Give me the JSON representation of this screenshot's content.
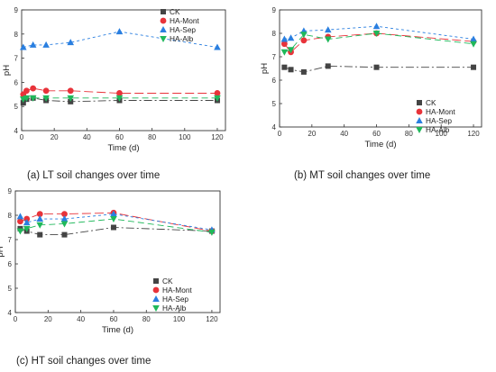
{
  "chart_data": [
    {
      "type": "line",
      "caption": "(a) LT soil changes over time",
      "xlabel": "Time (d)",
      "ylabel": "pH",
      "xlim": [
        0,
        125
      ],
      "ylim": [
        4,
        9
      ],
      "xticks": [
        "0",
        "20",
        "40",
        "60",
        "80",
        "100",
        "120"
      ],
      "yticks": [
        "4",
        "5",
        "6",
        "7",
        "8",
        "9"
      ],
      "legend_position": "top-right",
      "series": [
        {
          "name": "CK",
          "marker": "square",
          "color": "#444444",
          "dash": "9,3,2,3",
          "x": [
            1,
            3,
            7,
            15,
            30,
            60,
            120
          ],
          "y": [
            5.15,
            5.3,
            5.35,
            5.25,
            5.2,
            5.25,
            5.25
          ]
        },
        {
          "name": "HA-Mont",
          "marker": "circle",
          "color": "#e8333a",
          "dash": "10,4",
          "x": [
            1,
            3,
            7,
            15,
            30,
            60,
            120
          ],
          "y": [
            5.5,
            5.65,
            5.75,
            5.65,
            5.65,
            5.55,
            5.55
          ]
        },
        {
          "name": "HA-Sep",
          "marker": "triangle-up",
          "color": "#2a7fe0",
          "dash": "3,3",
          "x": [
            1,
            7,
            15,
            30,
            60,
            120
          ],
          "y": [
            7.45,
            7.55,
            7.55,
            7.65,
            8.1,
            7.45
          ]
        },
        {
          "name": "HA-Alb",
          "marker": "triangle-down",
          "color": "#1fb85a",
          "dash": "7,4",
          "x": [
            1,
            3,
            7,
            15,
            30,
            60,
            120
          ],
          "y": [
            5.3,
            5.35,
            5.35,
            5.35,
            5.35,
            5.35,
            5.35
          ]
        }
      ]
    },
    {
      "type": "line",
      "caption": "(b) MT soil changes over time",
      "xlabel": "Time (d)",
      "ylabel": "pH",
      "xlim": [
        0,
        125
      ],
      "ylim": [
        4,
        9
      ],
      "xticks": [
        "0",
        "20",
        "40",
        "60",
        "80",
        "100",
        "120"
      ],
      "yticks": [
        "4",
        "5",
        "6",
        "7",
        "8",
        "9"
      ],
      "legend_position": "bottom-right",
      "series": [
        {
          "name": "CK",
          "marker": "square",
          "color": "#444444",
          "dash": "9,3,2,3",
          "x": [
            3,
            7,
            15,
            30,
            60,
            120
          ],
          "y": [
            6.55,
            6.45,
            6.35,
            6.6,
            6.55,
            6.55
          ]
        },
        {
          "name": "HA-Mont",
          "marker": "circle",
          "color": "#e8333a",
          "dash": "10,4",
          "x": [
            3,
            7,
            15,
            30,
            60,
            120
          ],
          "y": [
            7.55,
            7.2,
            7.7,
            7.85,
            8.0,
            7.65
          ]
        },
        {
          "name": "HA-Sep",
          "marker": "triangle-up",
          "color": "#2a7fe0",
          "dash": "3,3",
          "x": [
            3,
            7,
            15,
            30,
            60,
            120
          ],
          "y": [
            7.75,
            7.8,
            8.1,
            8.15,
            8.3,
            7.75
          ]
        },
        {
          "name": "HA-Alb",
          "marker": "triangle-down",
          "color": "#1fb85a",
          "dash": "7,4",
          "x": [
            3,
            7,
            15,
            30,
            60,
            120
          ],
          "y": [
            7.2,
            7.3,
            7.95,
            7.75,
            8.0,
            7.55
          ]
        }
      ]
    },
    {
      "type": "line",
      "caption": "(c) HT soil changes over time",
      "xlabel": "Time (d)",
      "ylabel": "pH",
      "xlim": [
        0,
        125
      ],
      "ylim": [
        4,
        9
      ],
      "xticks": [
        "0",
        "20",
        "40",
        "60",
        "80",
        "100",
        "120"
      ],
      "yticks": [
        "4",
        "5",
        "6",
        "7",
        "8",
        "9"
      ],
      "legend_position": "bottom-center",
      "series": [
        {
          "name": "CK",
          "marker": "square",
          "color": "#444444",
          "dash": "9,3,2,3",
          "x": [
            3,
            7,
            15,
            30,
            60,
            120
          ],
          "y": [
            7.45,
            7.35,
            7.2,
            7.2,
            7.5,
            7.35
          ]
        },
        {
          "name": "HA-Mont",
          "marker": "circle",
          "color": "#e8333a",
          "dash": "10,4",
          "x": [
            3,
            7,
            15,
            30,
            60,
            120
          ],
          "y": [
            7.75,
            7.85,
            8.05,
            8.05,
            8.1,
            7.35
          ]
        },
        {
          "name": "HA-Sep",
          "marker": "triangle-up",
          "color": "#2a7fe0",
          "dash": "3,3",
          "x": [
            3,
            7,
            15,
            30,
            60,
            120
          ],
          "y": [
            7.95,
            7.7,
            7.85,
            7.85,
            8.05,
            7.4
          ]
        },
        {
          "name": "HA-Alb",
          "marker": "triangle-down",
          "color": "#1fb85a",
          "dash": "7,4",
          "x": [
            3,
            7,
            15,
            30,
            60,
            120
          ],
          "y": [
            7.35,
            7.45,
            7.6,
            7.65,
            7.85,
            7.3
          ]
        }
      ]
    }
  ]
}
